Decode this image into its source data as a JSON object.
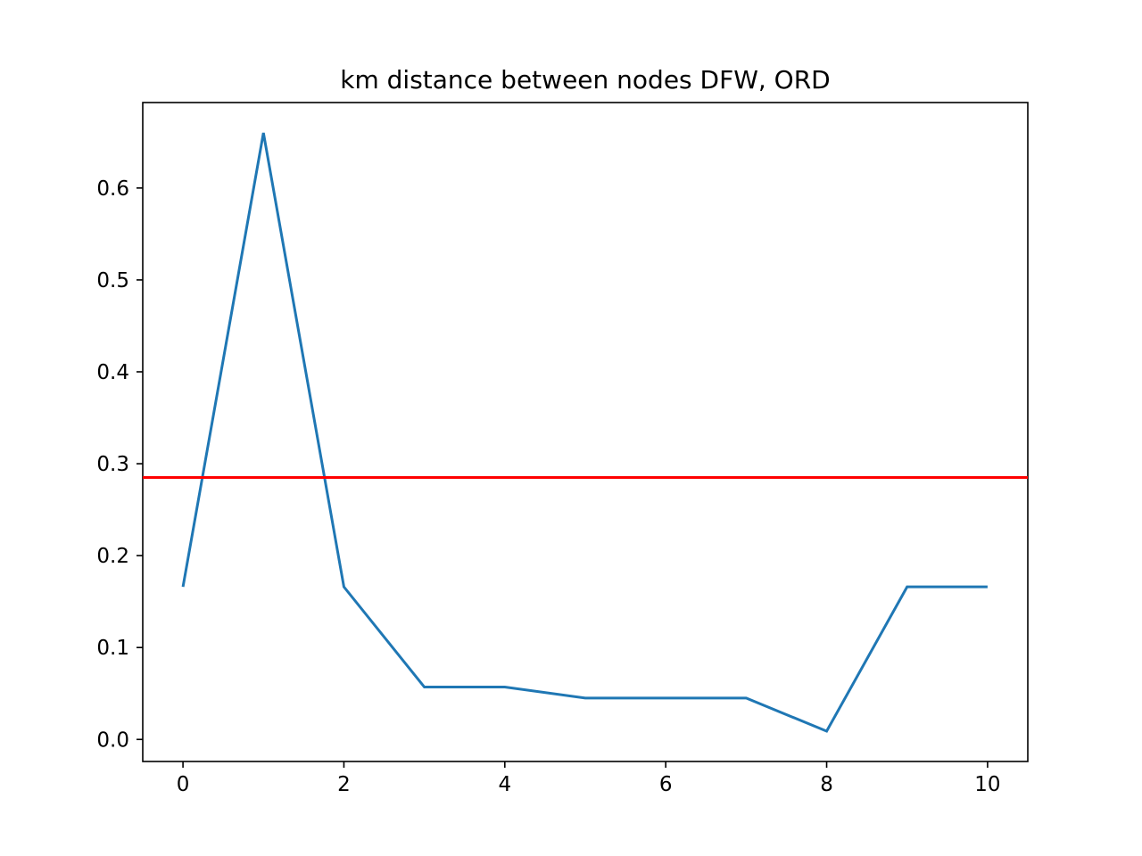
{
  "chart_data": {
    "type": "line",
    "title": "km distance between nodes DFW, ORD",
    "xlabel": "",
    "ylabel": "",
    "x": [
      0,
      1,
      2,
      3,
      4,
      5,
      6,
      7,
      8,
      9,
      10
    ],
    "series": [
      {
        "values": [
          0.166,
          0.66,
          0.166,
          0.057,
          0.057,
          0.045,
          0.045,
          0.045,
          0.009,
          0.166,
          0.166
        ],
        "color": "#1f77b4"
      }
    ],
    "hline": {
      "value": 0.285,
      "color": "#ff0000"
    },
    "xlim": [
      -0.5,
      10.5
    ],
    "ylim": [
      -0.024,
      0.693
    ],
    "xticks": [
      "0",
      "2",
      "4",
      "6",
      "8",
      "10"
    ],
    "yticks": [
      "0.0",
      "0.1",
      "0.2",
      "0.3",
      "0.4",
      "0.5",
      "0.6"
    ],
    "grid": false
  }
}
